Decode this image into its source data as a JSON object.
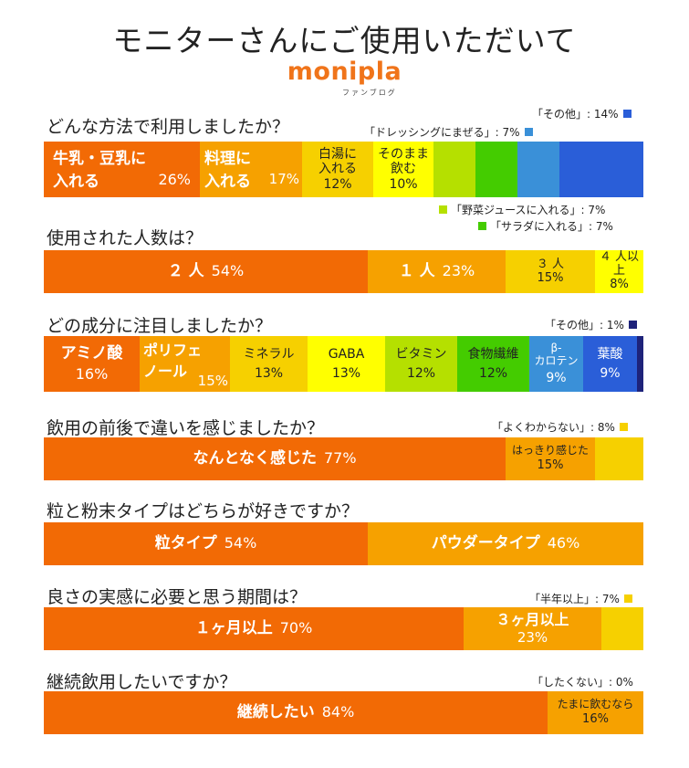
{
  "title": "モニターさんにご使用いただいて",
  "logo": {
    "text": "monipla",
    "sub": "ファンブログ"
  },
  "colors": {
    "orange": "#f26a05",
    "amber": "#f6a100",
    "gold": "#f6d000",
    "yellow": "#ffff00",
    "lime": "#b5e000",
    "green": "#44cc00",
    "sky": "#3a90d8",
    "blue": "#2a5ed8",
    "navy": "#1e237a"
  },
  "chart_data": [
    {
      "type": "bar",
      "title": "どんな方法で利用しましたか？",
      "categories": [
        "牛乳・豆乳に入れる",
        "料理に入れる",
        "白湯に入れる",
        "そのまま飲む",
        "野菜ジュースに入れる",
        "サラダに入れる",
        "ドレッシングにまぜる",
        "その他"
      ],
      "values": [
        26,
        17,
        12,
        10,
        7,
        7,
        7,
        14
      ],
      "unit": "%",
      "annotations": {
        "other": "「その他」: 14%",
        "dressing": "「ドレッシングにまぜる」: 7%",
        "vegjuice": "「野菜ジュースに入れる」: 7%",
        "salad": "「サラダに入れる」: 7%"
      }
    },
    {
      "type": "bar",
      "title": "使用された人数は？",
      "categories": [
        "２ 人",
        "１ 人",
        "３ 人",
        "４ 人以上"
      ],
      "values": [
        54,
        23,
        15,
        8
      ],
      "unit": "%"
    },
    {
      "type": "bar",
      "title": "どの成分に注目しましたか？",
      "categories": [
        "アミノ酸",
        "ポリフェノール",
        "ミネラル",
        "GABA",
        "ビタミン",
        "食物繊維",
        "β-カロテン",
        "葉酸",
        "その他"
      ],
      "values": [
        16,
        15,
        13,
        13,
        12,
        12,
        9,
        9,
        1
      ],
      "unit": "%",
      "annotations": {
        "other": "「その他」: 1%"
      }
    },
    {
      "type": "bar",
      "title": "飲用の前後で違いを感じましたか？",
      "categories": [
        "なんとなく感じた",
        "はっきり感じた",
        "よくわからない"
      ],
      "values": [
        77,
        15,
        8
      ],
      "unit": "%",
      "annotations": {
        "unknown": "「よくわからない」: 8%"
      }
    },
    {
      "type": "bar",
      "title": "粒と粉末タイプはどちらが好きですか？",
      "categories": [
        "粒タイプ",
        "パウダータイプ"
      ],
      "values": [
        54,
        46
      ],
      "unit": "%"
    },
    {
      "type": "bar",
      "title": "良さの実感に必要と思う期間は？",
      "categories": [
        "１ヶ月以上",
        "３ヶ月以上",
        "半年以上"
      ],
      "values": [
        70,
        23,
        7
      ],
      "unit": "%",
      "annotations": {
        "half": "「半年以上」: 7%"
      }
    },
    {
      "type": "bar",
      "title": "継続飲用したいですか？",
      "categories": [
        "継続したい",
        "たまに飲むなら",
        "したくない"
      ],
      "values": [
        84,
        16,
        0
      ],
      "unit": "%",
      "annotations": {
        "no": "「したくない」: 0%"
      }
    }
  ],
  "labels": {
    "q1": {
      "a1": "牛乳・豆乳に",
      "a2": "入れる",
      "av": "26%",
      "b1": "料理に",
      "b2": "入れる",
      "bv": "17%",
      "c1": "白湯に",
      "c2": "入れる",
      "cv": "12%",
      "d1": "そのまま",
      "d2": "飲む",
      "dv": "10%"
    },
    "q2": {
      "a": "２ 人",
      "av": "54%",
      "b": "１ 人",
      "bv": "23%",
      "c": "３ 人",
      "cv": "15%",
      "d": "４ 人以上",
      "dv": "8%"
    },
    "q3": {
      "a": "アミノ酸",
      "av": "16%",
      "b1": "ポリフェ",
      "b2": "ノール",
      "bv": "15%",
      "c": "ミネラル",
      "cv": "13%",
      "d": "GABA",
      "dv": "13%",
      "e": "ビタミン",
      "ev": "12%",
      "f": "食物繊維",
      "fv": "12%",
      "g1": "β-",
      "g2": "カロテン",
      "gv": "9%",
      "h": "葉酸",
      "hv": "9%"
    },
    "q4": {
      "a": "なんとなく感じた",
      "av": "77%",
      "b": "はっきり感じた",
      "bv": "15%"
    },
    "q5": {
      "a": "粒タイプ",
      "av": "54%",
      "b": "パウダータイプ",
      "bv": "46%"
    },
    "q6": {
      "a": "１ヶ月以上",
      "av": "70%",
      "b": "３ヶ月以上",
      "bv": "23%"
    },
    "q7": {
      "a": "継続したい",
      "av": "84%",
      "b": "たまに飲むなら",
      "bv": "16%"
    }
  }
}
